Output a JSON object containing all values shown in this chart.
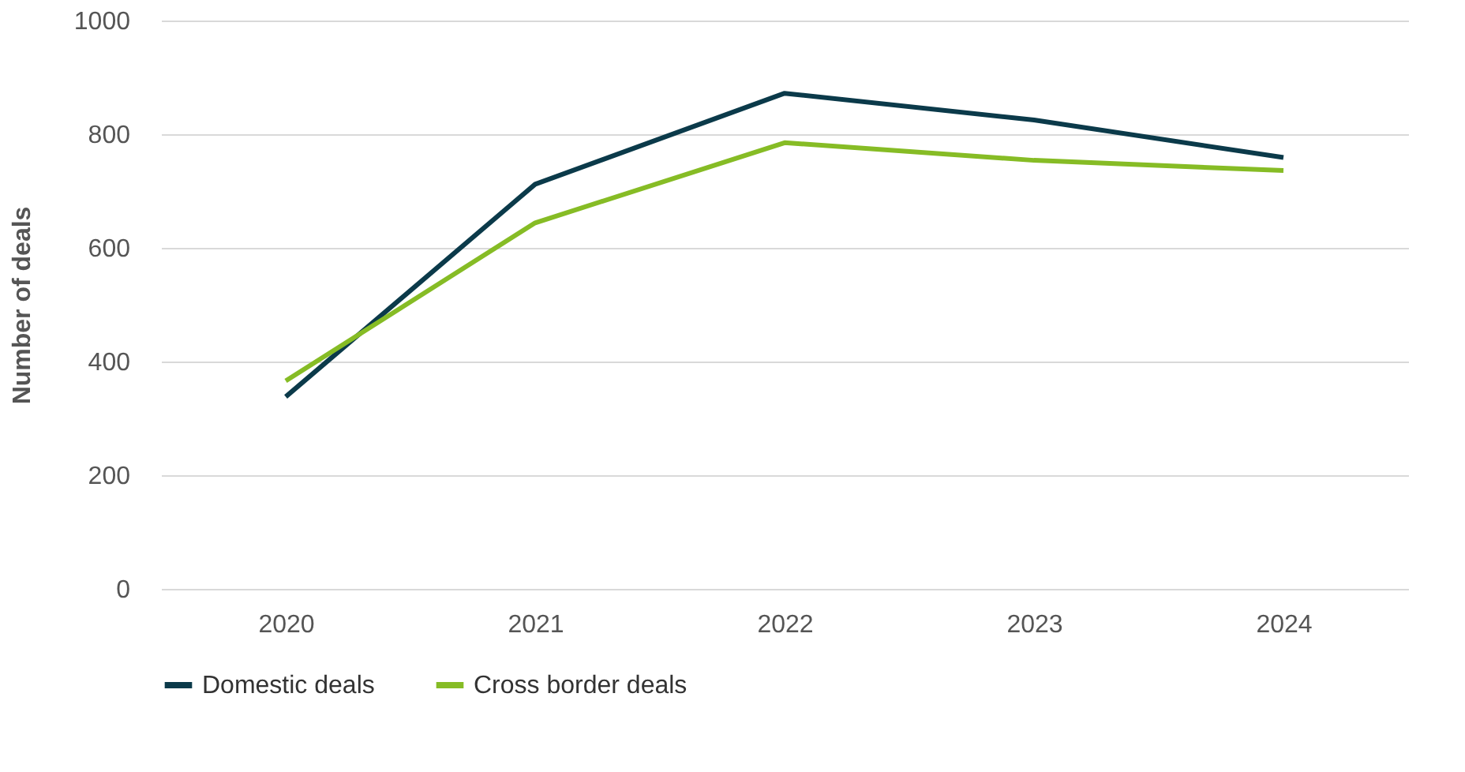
{
  "chart_data": {
    "type": "line",
    "ylabel": "Number of deals",
    "categories": [
      "2020",
      "2021",
      "2022",
      "2023",
      "2024"
    ],
    "series": [
      {
        "name": "Domestic deals",
        "color": "#0b3a4a",
        "values": [
          338,
          712,
          872,
          825,
          759
        ]
      },
      {
        "name": "Cross border deals",
        "color": "#86bc25",
        "values": [
          366,
          644,
          785,
          754,
          736
        ]
      }
    ],
    "ylim": [
      0,
      1000
    ],
    "yticks": [
      0,
      200,
      400,
      600,
      800,
      1000
    ],
    "grid": "y",
    "legend": "bottom left",
    "marker": "none",
    "line_style": "solid"
  }
}
